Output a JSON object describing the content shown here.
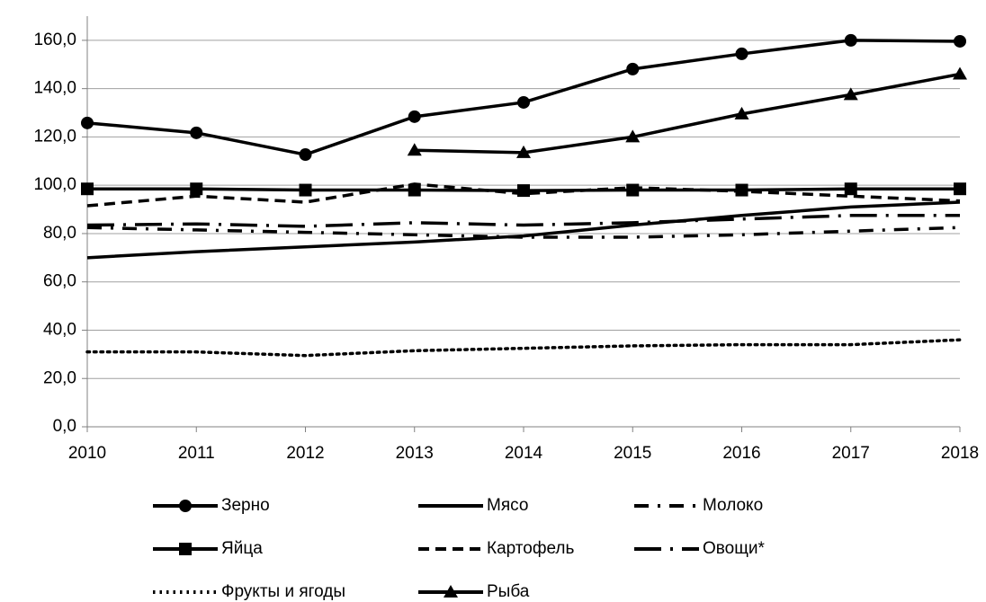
{
  "chart_data": {
    "type": "line",
    "x": [
      2010,
      2011,
      2012,
      2013,
      2014,
      2015,
      2016,
      2017,
      2018
    ],
    "xlim": [
      2010,
      2018
    ],
    "xticks": [
      2010,
      2011,
      2012,
      2013,
      2014,
      2015,
      2016,
      2017,
      2018
    ],
    "ylim": [
      0,
      170
    ],
    "yticks": [
      {
        "value": 0,
        "label": "0,0"
      },
      {
        "value": 20,
        "label": "20,0"
      },
      {
        "value": 40,
        "label": "40,0"
      },
      {
        "value": 60,
        "label": "60,0"
      },
      {
        "value": 80,
        "label": "80,0"
      },
      {
        "value": 100,
        "label": "100,0"
      },
      {
        "value": 120,
        "label": "120,0"
      },
      {
        "value": 140,
        "label": "140,0"
      },
      {
        "value": 160,
        "label": "160,0"
      }
    ],
    "grid": true,
    "legend": "bottom",
    "series": [
      {
        "name": "Зерно",
        "color": "#000000",
        "style": "solid",
        "marker": "circle",
        "values": [
          125.8,
          121.7,
          112.7,
          128.4,
          134.3,
          148.1,
          154.4,
          160,
          159.6
        ]
      },
      {
        "name": "Мясо",
        "color": "#000000",
        "style": "solid",
        "marker": "none",
        "values": [
          70,
          72.5,
          74.5,
          76.5,
          79,
          83.5,
          87.5,
          91,
          93
        ]
      },
      {
        "name": "Молоко",
        "color": "#000000",
        "style": "dashdot",
        "marker": "none",
        "values": [
          82.5,
          81.5,
          80.5,
          79.5,
          78.5,
          78.5,
          79.5,
          81,
          82.5
        ]
      },
      {
        "name": "Яйца",
        "color": "#000000",
        "style": "solid",
        "marker": "square",
        "values": [
          98.5,
          98.5,
          98,
          98,
          97.8,
          98,
          98,
          98.5,
          98.5
        ]
      },
      {
        "name": "Картофель",
        "color": "#000000",
        "style": "dash",
        "marker": "none",
        "values": [
          91.5,
          95.5,
          93,
          100.5,
          96.5,
          99,
          97.5,
          95.5,
          93.5
        ]
      },
      {
        "name": "Овощи*",
        "color": "#000000",
        "style": "longdashdot",
        "marker": "none",
        "values": [
          83.5,
          84,
          83,
          84.5,
          83.5,
          84.5,
          86,
          87.5,
          87.5
        ]
      },
      {
        "name": "Фрукты и ягоды",
        "color": "#000000",
        "style": "dot",
        "marker": "none",
        "values": [
          31,
          31,
          29.5,
          31.5,
          32.5,
          33.5,
          34,
          34,
          36
        ]
      },
      {
        "name": "Рыба",
        "color": "#000000",
        "style": "solid",
        "marker": "triangle",
        "values": [
          null,
          null,
          null,
          114.5,
          113.5,
          120,
          129.5,
          137.5,
          146
        ]
      }
    ]
  }
}
